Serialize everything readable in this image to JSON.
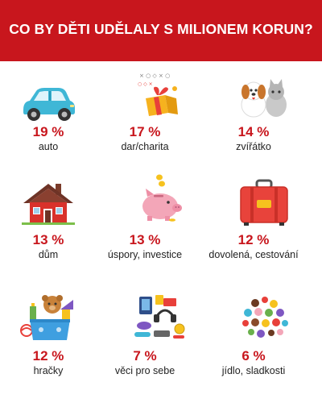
{
  "header": {
    "title": "CO BY DĚTI UDĚLALY S MILIONEM KORUN?"
  },
  "colors": {
    "accent": "#c8161d",
    "text": "#222222",
    "background": "#ffffff"
  },
  "chart_data": {
    "type": "table",
    "title": "CO BY DĚTI UDĚLALY S MILIONEM KORUN?",
    "unit": "%",
    "items": [
      {
        "label": "auto",
        "value": 19,
        "value_text": "19 %",
        "icon": "car-icon"
      },
      {
        "label": "dar/charita",
        "value": 17,
        "value_text": "17 %",
        "icon": "gift-icon"
      },
      {
        "label": "zvířátko",
        "value": 14,
        "value_text": "14 %",
        "icon": "pets-icon"
      },
      {
        "label": "dům",
        "value": 13,
        "value_text": "13 %",
        "icon": "house-icon"
      },
      {
        "label": "úspory, investice",
        "value": 13,
        "value_text": "13 %",
        "icon": "piggy-bank-icon"
      },
      {
        "label": "dovolená, cestování",
        "value": 12,
        "value_text": "12 %",
        "icon": "suitcase-icon"
      },
      {
        "label": "hračky",
        "value": 12,
        "value_text": "12 %",
        "icon": "toys-icon"
      },
      {
        "label": "věci pro sebe",
        "value": 7,
        "value_text": "7 %",
        "icon": "gadgets-icon"
      },
      {
        "label": "jídlo, sladkosti",
        "value": 6,
        "value_text": "6 %",
        "icon": "sweets-icon"
      }
    ]
  }
}
